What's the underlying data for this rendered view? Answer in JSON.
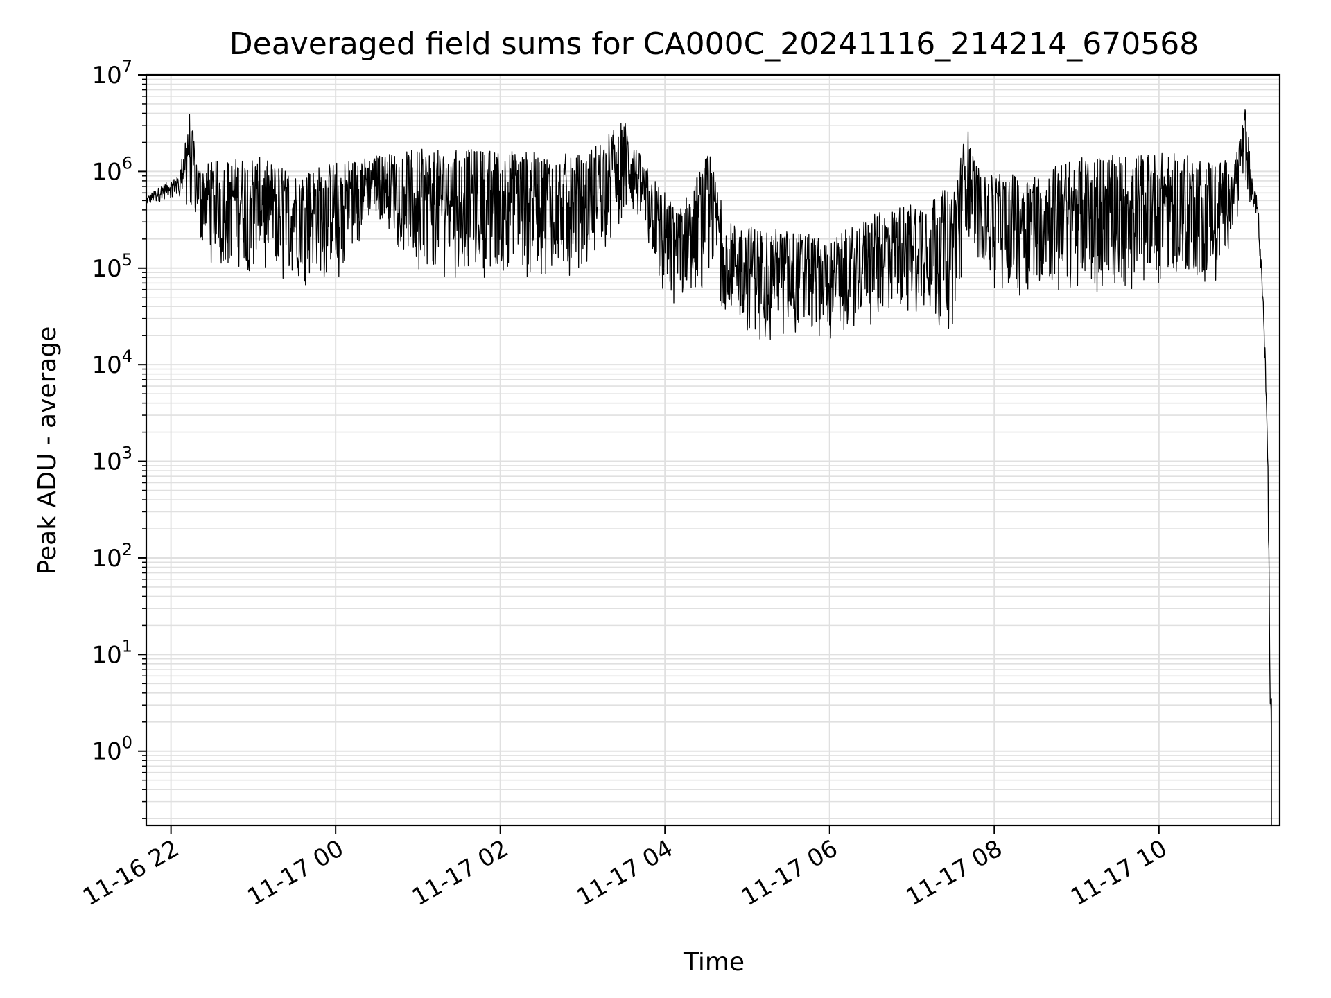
{
  "chart_data": {
    "type": "line",
    "title": "Deaveraged field sums for CA000C_20241116_214214_670568",
    "xlabel": "Time",
    "ylabel": "Peak ADU - average",
    "yscale": "log",
    "ylim": [
      0.17,
      10000000
    ],
    "xlim": [
      "2024-11-16 21:42",
      "2024-11-17 11:28"
    ],
    "grid": true,
    "line_color": "#000000",
    "grid_color": "#e0e0e0",
    "x_ticks": [
      {
        "x": "2024-11-16 22:00",
        "label": "11-16 22"
      },
      {
        "x": "2024-11-17 00:00",
        "label": "11-17 00"
      },
      {
        "x": "2024-11-17 02:00",
        "label": "11-17 02"
      },
      {
        "x": "2024-11-17 04:00",
        "label": "11-17 04"
      },
      {
        "x": "2024-11-17 06:00",
        "label": "11-17 06"
      },
      {
        "x": "2024-11-17 08:00",
        "label": "11-17 08"
      },
      {
        "x": "2024-11-17 10:00",
        "label": "11-17 10"
      }
    ],
    "y_ticks": [
      {
        "value": 1,
        "base": "10",
        "exp": "0"
      },
      {
        "value": 10,
        "base": "10",
        "exp": "1"
      },
      {
        "value": 100,
        "base": "10",
        "exp": "2"
      },
      {
        "value": 1000,
        "base": "10",
        "exp": "3"
      },
      {
        "value": 10000,
        "base": "10",
        "exp": "4"
      },
      {
        "value": 100000,
        "base": "10",
        "exp": "5"
      },
      {
        "value": 1000000,
        "base": "10",
        "exp": "6"
      },
      {
        "value": 10000000,
        "base": "10",
        "exp": "7"
      }
    ],
    "series": [
      {
        "color": "#000000",
        "upper_envelope": [
          {
            "x": "2024-11-16 21:42",
            "y": 550000
          },
          {
            "x": "2024-11-16 21:55",
            "y": 750000
          },
          {
            "x": "2024-11-16 22:06",
            "y": 900000
          },
          {
            "x": "2024-11-16 22:13",
            "y": 4800000
          },
          {
            "x": "2024-11-16 22:20",
            "y": 1200000
          },
          {
            "x": "2024-11-16 23:00",
            "y": 1500000
          },
          {
            "x": "2024-11-16 23:30",
            "y": 1000000
          },
          {
            "x": "2024-11-17 00:00",
            "y": 1300000
          },
          {
            "x": "2024-11-17 01:00",
            "y": 1700000
          },
          {
            "x": "2024-11-17 02:00",
            "y": 1700000
          },
          {
            "x": "2024-11-17 03:00",
            "y": 1500000
          },
          {
            "x": "2024-11-17 03:30",
            "y": 3500000
          },
          {
            "x": "2024-11-17 03:45",
            "y": 1200000
          },
          {
            "x": "2024-11-17 04:10",
            "y": 400000
          },
          {
            "x": "2024-11-17 04:32",
            "y": 1600000
          },
          {
            "x": "2024-11-17 04:45",
            "y": 300000
          },
          {
            "x": "2024-11-17 05:30",
            "y": 250000
          },
          {
            "x": "2024-11-17 06:00",
            "y": 200000
          },
          {
            "x": "2024-11-17 06:30",
            "y": 350000
          },
          {
            "x": "2024-11-17 07:00",
            "y": 500000
          },
          {
            "x": "2024-11-17 07:30",
            "y": 700000
          },
          {
            "x": "2024-11-17 07:40",
            "y": 3000000
          },
          {
            "x": "2024-11-17 07:50",
            "y": 900000
          },
          {
            "x": "2024-11-17 08:30",
            "y": 1000000
          },
          {
            "x": "2024-11-17 09:00",
            "y": 1400000
          },
          {
            "x": "2024-11-17 10:00",
            "y": 1600000
          },
          {
            "x": "2024-11-17 10:55",
            "y": 1300000
          },
          {
            "x": "2024-11-17 11:03",
            "y": 5000000
          },
          {
            "x": "2024-11-17 11:08",
            "y": 900000
          },
          {
            "x": "2024-11-17 11:12",
            "y": 500000
          },
          {
            "x": "2024-11-17 11:16",
            "y": 50000
          },
          {
            "x": "2024-11-17 11:19",
            "y": 3000
          },
          {
            "x": "2024-11-17 11:20",
            "y": 500
          },
          {
            "x": "2024-11-17 11:21",
            "y": 4
          },
          {
            "x": "2024-11-17 11:22",
            "y": 3.5
          }
        ],
        "lower_envelope": [
          {
            "x": "2024-11-16 21:42",
            "y": 420000
          },
          {
            "x": "2024-11-16 21:55",
            "y": 500000
          },
          {
            "x": "2024-11-16 22:06",
            "y": 550000
          },
          {
            "x": "2024-11-16 22:13",
            "y": 380000
          },
          {
            "x": "2024-11-16 22:20",
            "y": 200000
          },
          {
            "x": "2024-11-16 22:30",
            "y": 100000
          },
          {
            "x": "2024-11-16 23:00",
            "y": 80000
          },
          {
            "x": "2024-11-16 23:30",
            "y": 65000
          },
          {
            "x": "2024-11-17 00:00",
            "y": 70000
          },
          {
            "x": "2024-11-17 00:30",
            "y": 350000
          },
          {
            "x": "2024-11-17 01:00",
            "y": 80000
          },
          {
            "x": "2024-11-17 02:00",
            "y": 80000
          },
          {
            "x": "2024-11-17 03:00",
            "y": 80000
          },
          {
            "x": "2024-11-17 03:30",
            "y": 300000
          },
          {
            "x": "2024-11-17 03:45",
            "y": 200000
          },
          {
            "x": "2024-11-17 04:00",
            "y": 35000
          },
          {
            "x": "2024-11-17 04:32",
            "y": 60000
          },
          {
            "x": "2024-11-17 05:00",
            "y": 18000
          },
          {
            "x": "2024-11-17 05:30",
            "y": 18000
          },
          {
            "x": "2024-11-17 06:00",
            "y": 18000
          },
          {
            "x": "2024-11-17 06:30",
            "y": 25000
          },
          {
            "x": "2024-11-17 07:00",
            "y": 35000
          },
          {
            "x": "2024-11-17 07:30",
            "y": 22000
          },
          {
            "x": "2024-11-17 07:40",
            "y": 200000
          },
          {
            "x": "2024-11-17 08:00",
            "y": 50000
          },
          {
            "x": "2024-11-17 09:00",
            "y": 55000
          },
          {
            "x": "2024-11-17 10:00",
            "y": 60000
          },
          {
            "x": "2024-11-17 10:45",
            "y": 65000
          },
          {
            "x": "2024-11-17 10:55",
            "y": 300000
          },
          {
            "x": "2024-11-17 11:03",
            "y": 500000
          },
          {
            "x": "2024-11-17 11:12",
            "y": 300000
          },
          {
            "x": "2024-11-17 11:16",
            "y": 30000
          },
          {
            "x": "2024-11-17 11:19",
            "y": 1500
          },
          {
            "x": "2024-11-17 11:22",
            "y": 0.17
          }
        ]
      }
    ]
  }
}
